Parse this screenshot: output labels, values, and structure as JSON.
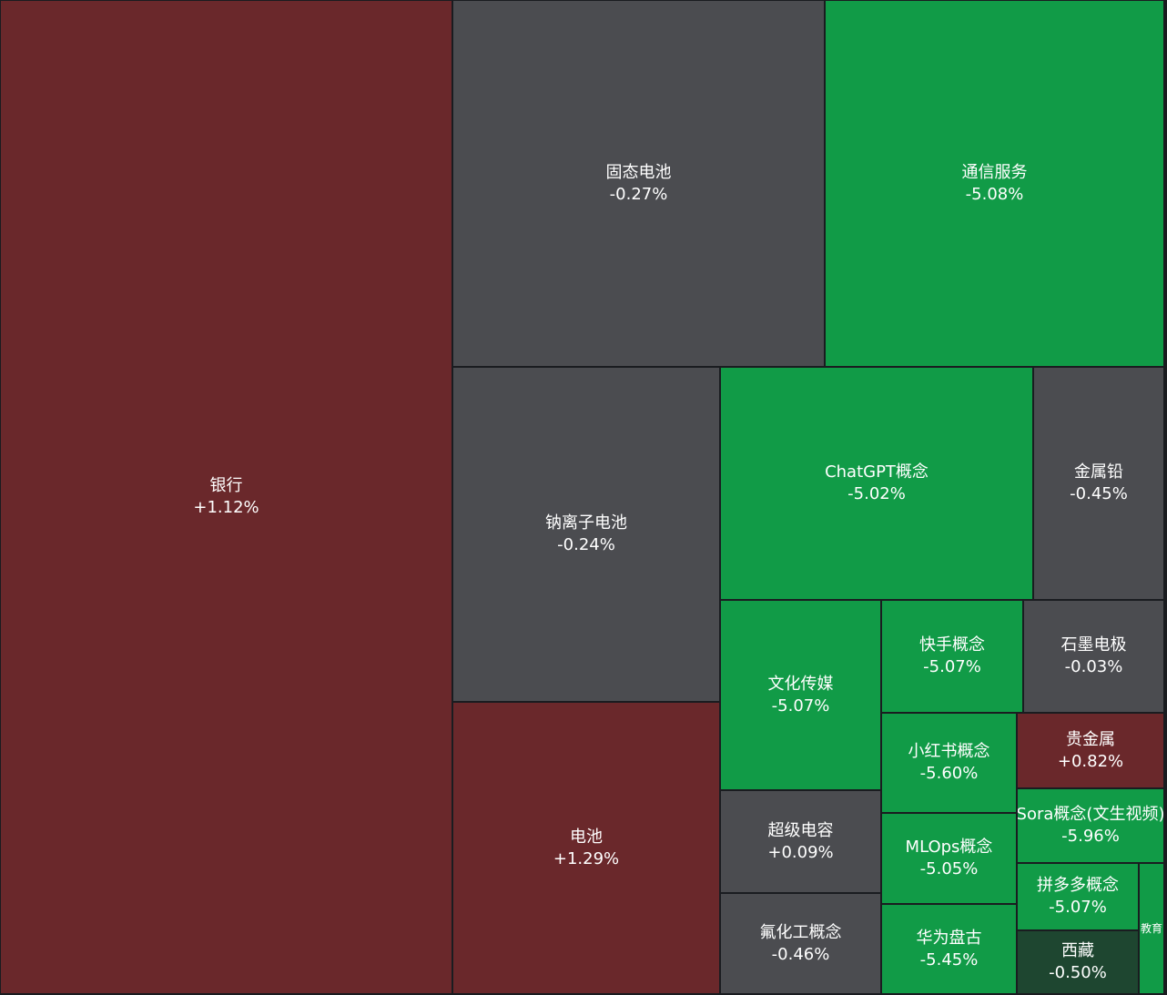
{
  "colors": {
    "up": "#6a282b",
    "flat": "#4b4c50",
    "down": "#119b47",
    "down_dark": "#1e4630",
    "border": "#1a1c20"
  },
  "chart_data": {
    "type": "treemap",
    "title": "",
    "items": [
      {
        "name": "银行",
        "change": 1.12,
        "label": "+1.12%",
        "color": "up"
      },
      {
        "name": "固态电池",
        "change": -0.27,
        "label": "-0.27%",
        "color": "flat"
      },
      {
        "name": "通信服务",
        "change": -5.08,
        "label": "-5.08%",
        "color": "down"
      },
      {
        "name": "钠离子电池",
        "change": -0.24,
        "label": "-0.24%",
        "color": "flat"
      },
      {
        "name": "ChatGPT概念",
        "change": -5.02,
        "label": "-5.02%",
        "color": "down"
      },
      {
        "name": "金属铅",
        "change": -0.45,
        "label": "-0.45%",
        "color": "flat"
      },
      {
        "name": "电池",
        "change": 1.29,
        "label": "+1.29%",
        "color": "up"
      },
      {
        "name": "文化传媒",
        "change": -5.07,
        "label": "-5.07%",
        "color": "down"
      },
      {
        "name": "快手概念",
        "change": -5.07,
        "label": "-5.07%",
        "color": "down"
      },
      {
        "name": "石墨电极",
        "change": -0.03,
        "label": "-0.03%",
        "color": "flat"
      },
      {
        "name": "小红书概念",
        "change": -5.6,
        "label": "-5.60%",
        "color": "down"
      },
      {
        "name": "贵金属",
        "change": 0.82,
        "label": "+0.82%",
        "color": "up"
      },
      {
        "name": "Sora概念(文生视频)",
        "change": -5.96,
        "label": "-5.96%",
        "color": "down"
      },
      {
        "name": "超级电容",
        "change": 0.09,
        "label": "+0.09%",
        "color": "flat"
      },
      {
        "name": "MLOps概念",
        "change": -5.05,
        "label": "-5.05%",
        "color": "down"
      },
      {
        "name": "拼多多概念",
        "change": -5.07,
        "label": "-5.07%",
        "color": "down"
      },
      {
        "name": "氟化工概念",
        "change": -0.46,
        "label": "-0.46%",
        "color": "flat"
      },
      {
        "name": "华为盘古",
        "change": -5.45,
        "label": "-5.45%",
        "color": "down"
      },
      {
        "name": "西藏",
        "change": -0.5,
        "label": "-0.50%",
        "color": "down_dark"
      },
      {
        "name": "教育",
        "change": null,
        "label": "",
        "color": "down"
      }
    ]
  }
}
